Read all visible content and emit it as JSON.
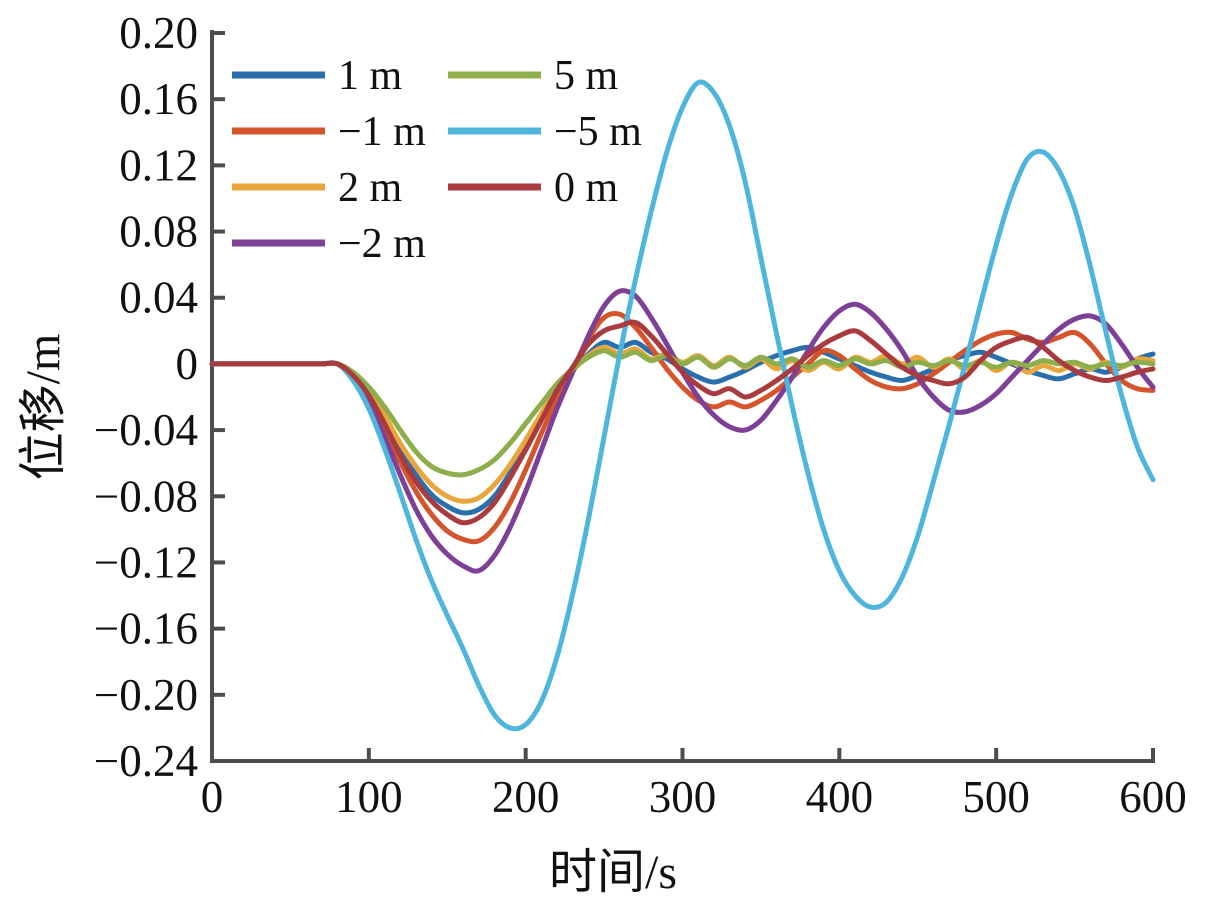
{
  "figure": {
    "background": "#ffffff",
    "axis_color": "#4d4d4d",
    "text_color": "#111111"
  },
  "chart_data": {
    "type": "line",
    "title": "",
    "xlabel": "时间/s",
    "ylabel": "位移/m",
    "xlim": [
      0,
      600
    ],
    "ylim": [
      -0.24,
      0.2
    ],
    "grid": false,
    "legend_position": "top-left-inside",
    "xtick_values": [
      0,
      100,
      200,
      300,
      400,
      500,
      600
    ],
    "xtick_labels": [
      "0",
      "100",
      "200",
      "300",
      "400",
      "500",
      "600"
    ],
    "ytick_values": [
      0.2,
      0.16,
      0.12,
      0.08,
      0.04,
      0,
      -0.04,
      -0.08,
      -0.12,
      -0.16,
      -0.2,
      -0.24
    ],
    "ytick_labels": [
      "0.20",
      "0.16",
      "0.12",
      "0.08",
      "0.04",
      "0",
      "−0.04",
      "−0.08",
      "−0.12",
      "−0.16",
      "−0.20",
      "−0.24"
    ],
    "x_start": 0,
    "x_step": 10,
    "legend_columns": [
      [
        "1 m",
        "−1 m",
        "2 m",
        "−2 m"
      ],
      [
        "5 m",
        "−5 m",
        "0 m"
      ]
    ],
    "series": [
      {
        "name": "1 m",
        "color": "#2a6fad",
        "values": [
          0,
          0,
          0,
          0,
          0,
          0,
          0,
          0,
          0,
          -0.007,
          -0.018,
          -0.034,
          -0.052,
          -0.067,
          -0.079,
          -0.086,
          -0.09,
          -0.088,
          -0.08,
          -0.066,
          -0.05,
          -0.032,
          -0.016,
          -0.004,
          0.006,
          0.013,
          0.01,
          0.013,
          0.007,
          0.003,
          -0.003,
          -0.008,
          -0.011,
          -0.008,
          -0.004,
          0.001,
          0.005,
          0.008,
          0.01,
          0.007,
          0.003,
          -0.001,
          -0.005,
          -0.008,
          -0.01,
          -0.007,
          -0.003,
          0.002,
          0.005,
          0.007,
          0.004,
          0.0,
          -0.004,
          -0.007,
          -0.009,
          -0.006,
          -0.003,
          -0.005,
          -0.002,
          0.003,
          0.006
        ]
      },
      {
        "name": "−1 m",
        "color": "#d4542c",
        "values": [
          0,
          0,
          0,
          0,
          0,
          0,
          0,
          0,
          0,
          -0.008,
          -0.021,
          -0.039,
          -0.059,
          -0.077,
          -0.091,
          -0.101,
          -0.106,
          -0.107,
          -0.099,
          -0.084,
          -0.064,
          -0.042,
          -0.021,
          -0.003,
          0.015,
          0.028,
          0.03,
          0.022,
          0.01,
          -0.003,
          -0.014,
          -0.022,
          -0.026,
          -0.023,
          -0.026,
          -0.022,
          -0.016,
          -0.008,
          0.0,
          0.008,
          0.005,
          -0.003,
          -0.01,
          -0.014,
          -0.015,
          -0.012,
          -0.006,
          0.001,
          0.008,
          0.014,
          0.018,
          0.019,
          0.015,
          0.013,
          0.016,
          0.019,
          0.012,
          0.0,
          -0.01,
          -0.015,
          -0.016
        ]
      },
      {
        "name": "2 m",
        "color": "#e9a63c",
        "values": [
          0,
          0,
          0,
          0,
          0,
          0,
          0,
          0,
          0,
          -0.006,
          -0.016,
          -0.031,
          -0.048,
          -0.062,
          -0.073,
          -0.08,
          -0.083,
          -0.081,
          -0.073,
          -0.061,
          -0.046,
          -0.03,
          -0.015,
          -0.004,
          0.005,
          0.01,
          0.006,
          0.009,
          0.003,
          0.006,
          0.001,
          0.005,
          -0.001,
          0.004,
          -0.002,
          0.003,
          -0.003,
          0.002,
          -0.004,
          0.001,
          -0.003,
          0.004,
          0.001,
          0.005,
          0.0,
          0.004,
          -0.002,
          0.003,
          -0.003,
          0.002,
          -0.004,
          0.001,
          -0.005,
          -0.001,
          -0.004,
          0.0,
          -0.003,
          0.001,
          -0.002,
          0.003,
          0.002
        ]
      },
      {
        "name": "−2 m",
        "color": "#7e3f96",
        "values": [
          0,
          0,
          0,
          0,
          0,
          0,
          0,
          0,
          0,
          -0.009,
          -0.024,
          -0.044,
          -0.067,
          -0.088,
          -0.104,
          -0.115,
          -0.122,
          -0.125,
          -0.116,
          -0.099,
          -0.077,
          -0.052,
          -0.027,
          -0.005,
          0.017,
          0.035,
          0.044,
          0.041,
          0.028,
          0.012,
          -0.005,
          -0.02,
          -0.031,
          -0.038,
          -0.04,
          -0.034,
          -0.022,
          -0.008,
          0.008,
          0.022,
          0.032,
          0.036,
          0.031,
          0.021,
          0.008,
          -0.008,
          -0.02,
          -0.028,
          -0.029,
          -0.025,
          -0.018,
          -0.008,
          0.002,
          0.012,
          0.021,
          0.027,
          0.029,
          0.024,
          0.012,
          -0.002,
          -0.014
        ]
      },
      {
        "name": "5 m",
        "color": "#8dae4a",
        "values": [
          0,
          0,
          0,
          0,
          0,
          0,
          0,
          0,
          0,
          -0.005,
          -0.014,
          -0.026,
          -0.04,
          -0.053,
          -0.062,
          -0.066,
          -0.067,
          -0.064,
          -0.058,
          -0.048,
          -0.036,
          -0.024,
          -0.012,
          -0.003,
          0.004,
          0.008,
          0.004,
          0.007,
          0.002,
          0.005,
          0.0,
          0.004,
          -0.002,
          0.003,
          -0.001,
          0.004,
          0.0,
          0.003,
          -0.002,
          0.002,
          -0.001,
          0.003,
          0.0,
          0.002,
          -0.002,
          0.001,
          -0.001,
          0.002,
          -0.001,
          0.001,
          -0.002,
          0.001,
          -0.001,
          0.002,
          0.0,
          0.001,
          -0.002,
          0.0,
          -0.001,
          0.001,
          0.0
        ]
      },
      {
        "name": "−5 m",
        "color": "#4eb6dc",
        "values": [
          0,
          0,
          0,
          0,
          0,
          0,
          0,
          0,
          0,
          -0.01,
          -0.027,
          -0.051,
          -0.078,
          -0.106,
          -0.131,
          -0.152,
          -0.172,
          -0.194,
          -0.212,
          -0.22,
          -0.218,
          -0.204,
          -0.177,
          -0.139,
          -0.094,
          -0.044,
          0.006,
          0.051,
          0.092,
          0.128,
          0.155,
          0.17,
          0.164,
          0.144,
          0.11,
          0.064,
          0.018,
          -0.026,
          -0.066,
          -0.1,
          -0.125,
          -0.14,
          -0.147,
          -0.144,
          -0.129,
          -0.104,
          -0.071,
          -0.037,
          -0.001,
          0.036,
          0.072,
          0.103,
          0.124,
          0.128,
          0.117,
          0.094,
          0.059,
          0.019,
          -0.019,
          -0.05,
          -0.07
        ]
      },
      {
        "name": "0 m",
        "color": "#a93a3e",
        "values": [
          0,
          0,
          0,
          0,
          0,
          0,
          0,
          0,
          0,
          -0.007,
          -0.019,
          -0.036,
          -0.055,
          -0.071,
          -0.083,
          -0.091,
          -0.096,
          -0.093,
          -0.084,
          -0.069,
          -0.052,
          -0.034,
          -0.016,
          -0.002,
          0.012,
          0.02,
          0.023,
          0.025,
          0.017,
          0.006,
          -0.005,
          -0.013,
          -0.018,
          -0.015,
          -0.02,
          -0.016,
          -0.01,
          -0.003,
          0.005,
          0.012,
          0.017,
          0.02,
          0.014,
          0.006,
          -0.002,
          -0.007,
          -0.01,
          -0.012,
          -0.008,
          0.002,
          0.01,
          0.014,
          0.016,
          0.01,
          0.002,
          -0.004,
          -0.008,
          -0.01,
          -0.008,
          -0.005,
          -0.003
        ]
      }
    ]
  }
}
